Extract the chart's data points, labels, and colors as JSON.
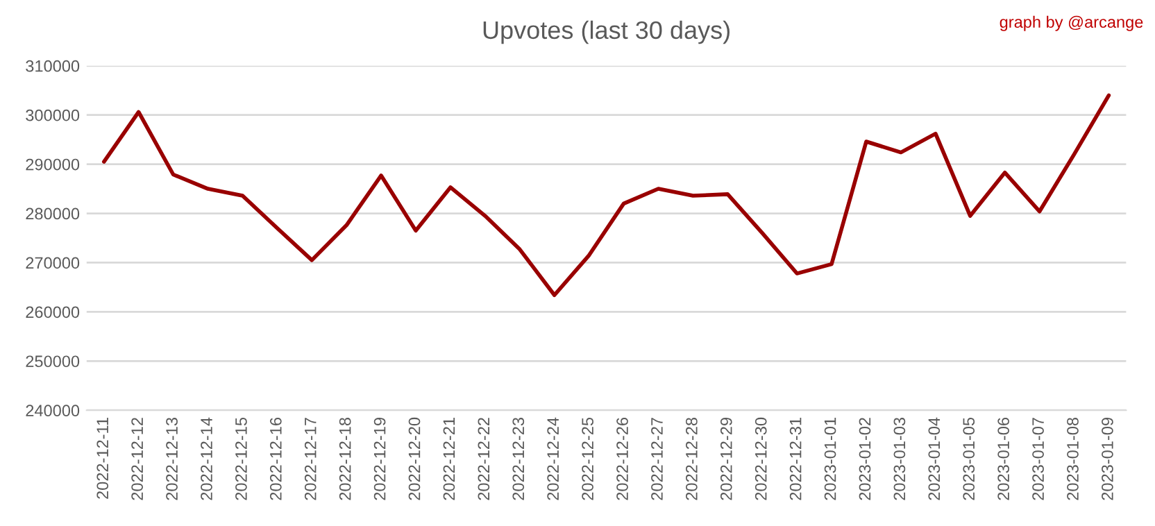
{
  "chart_data": {
    "type": "line",
    "title": "Upvotes (last 30 days)",
    "annotations": [
      "graph by @arcange"
    ],
    "categories": [
      "2022-12-11",
      "2022-12-12",
      "2022-12-13",
      "2022-12-14",
      "2022-12-15",
      "2022-12-16",
      "2022-12-17",
      "2022-12-18",
      "2022-12-19",
      "2022-12-20",
      "2022-12-21",
      "2022-12-22",
      "2022-12-23",
      "2022-12-24",
      "2022-12-25",
      "2022-12-26",
      "2022-12-27",
      "2022-12-28",
      "2022-12-29",
      "2022-12-30",
      "2022-12-31",
      "2023-01-01",
      "2023-01-02",
      "2023-01-03",
      "2023-01-04",
      "2023-01-05",
      "2023-01-06",
      "2023-01-07",
      "2023-01-08",
      "2023-01-09"
    ],
    "series": [
      {
        "color": "#990000",
        "values": [
          290500,
          300600,
          287900,
          285000,
          283600,
          277000,
          270500,
          277600,
          287700,
          276500,
          285300,
          279500,
          272700,
          263400,
          271500,
          282000,
          285000,
          283600,
          283900,
          276000,
          267800,
          269700,
          294600,
          292400,
          296200,
          279500,
          288300,
          280400,
          292000,
          304000
        ]
      }
    ],
    "ylim": [
      240000,
      310000
    ],
    "yticks": [
      240000,
      250000,
      260000,
      270000,
      280000,
      290000,
      300000,
      310000
    ],
    "grid": "y",
    "marker": "none",
    "line_style": "solid"
  }
}
